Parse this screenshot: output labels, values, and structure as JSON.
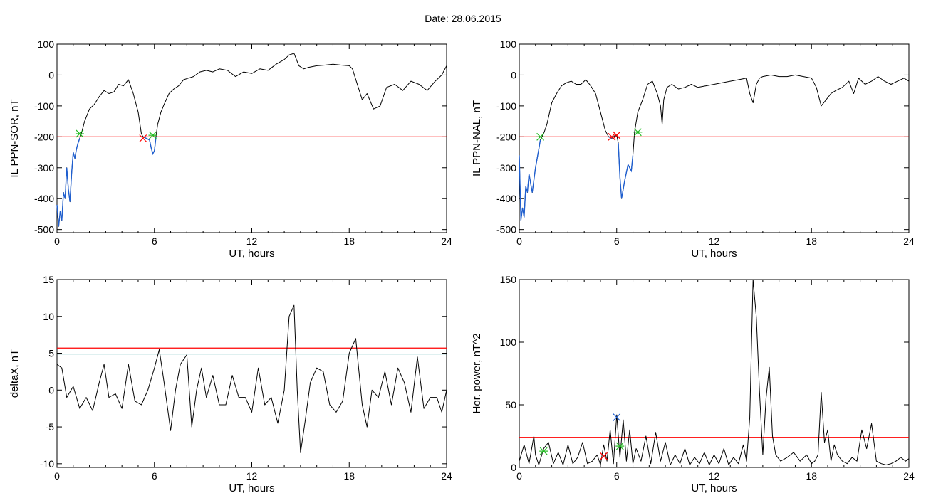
{
  "header": {
    "title": "Date:  28.06.2015"
  },
  "colors": {
    "line": "#000000",
    "threshold_red": "#ff0000",
    "threshold_teal": "#008b8b",
    "highlight_blue": "#1f5fd0",
    "marker_green": "#22bb22",
    "marker_red": "#cc0000",
    "marker_blue": "#1f5fd0"
  },
  "chart_data": [
    {
      "type": "line",
      "xlabel": "UT, hours",
      "ylabel": "IL PPN-SOR, nT",
      "xlim": [
        0,
        24
      ],
      "ylim": [
        -510,
        100
      ],
      "xticks": [
        0,
        6,
        12,
        18,
        24
      ],
      "yticks": [
        100,
        0,
        -100,
        -200,
        -300,
        -400,
        -500
      ],
      "threshold_lines": [
        {
          "y": -200,
          "color": "red"
        }
      ],
      "x": [
        0,
        0.1,
        0.2,
        0.3,
        0.4,
        0.5,
        0.6,
        0.7,
        0.8,
        0.9,
        1.0,
        1.1,
        1.2,
        1.3,
        1.4,
        1.5,
        1.7,
        2.0,
        2.3,
        2.6,
        2.9,
        3.2,
        3.5,
        3.8,
        4.1,
        4.4,
        4.7,
        5.0,
        5.2,
        5.3,
        5.5,
        5.7,
        5.8,
        5.9,
        6.0,
        6.1,
        6.2,
        6.4,
        6.6,
        6.9,
        7.2,
        7.5,
        7.8,
        8.1,
        8.4,
        8.8,
        9.2,
        9.6,
        10.0,
        10.5,
        11.0,
        11.5,
        12.0,
        12.5,
        13.0,
        13.5,
        14.0,
        14.3,
        14.6,
        14.9,
        15.2,
        15.5,
        16.0,
        16.5,
        17.0,
        17.5,
        18.0,
        18.2,
        18.5,
        18.8,
        19.1,
        19.5,
        19.9,
        20.3,
        20.8,
        21.3,
        21.8,
        22.3,
        22.8,
        23.3,
        23.7,
        24.0
      ],
      "y": [
        -420,
        -490,
        -440,
        -470,
        -380,
        -400,
        -300,
        -370,
        -410,
        -320,
        -250,
        -270,
        -240,
        -220,
        -205,
        -190,
        -150,
        -110,
        -95,
        -70,
        -50,
        -60,
        -55,
        -30,
        -35,
        -15,
        -60,
        -120,
        -190,
        -200,
        -205,
        -210,
        -235,
        -255,
        -245,
        -200,
        -160,
        -120,
        -95,
        -60,
        -45,
        -35,
        -15,
        -10,
        -5,
        10,
        15,
        10,
        20,
        15,
        -5,
        10,
        5,
        20,
        15,
        35,
        50,
        65,
        70,
        30,
        20,
        25,
        30,
        32,
        35,
        32,
        30,
        20,
        -30,
        -80,
        -60,
        -110,
        -100,
        -40,
        -30,
        -50,
        -20,
        -30,
        -50,
        -20,
        0,
        30
      ],
      "markers": [
        {
          "x": 1.4,
          "y": -190,
          "symbol": "asterisk",
          "color": "green"
        },
        {
          "x": 5.3,
          "y": -205,
          "symbol": "x",
          "color": "red"
        },
        {
          "x": 5.9,
          "y": -195,
          "symbol": "asterisk",
          "color": "green"
        }
      ]
    },
    {
      "type": "line",
      "xlabel": "UT, hours",
      "ylabel": "IL PPN-NAL, nT",
      "xlim": [
        0,
        24
      ],
      "ylim": [
        -510,
        100
      ],
      "xticks": [
        0,
        6,
        12,
        18,
        24
      ],
      "yticks": [
        100,
        0,
        -100,
        -200,
        -300,
        -400,
        -500
      ],
      "threshold_lines": [
        {
          "y": -200,
          "color": "red"
        }
      ],
      "x": [
        0,
        0.1,
        0.2,
        0.3,
        0.4,
        0.5,
        0.6,
        0.8,
        1.0,
        1.2,
        1.3,
        1.5,
        1.7,
        2.0,
        2.3,
        2.6,
        2.9,
        3.2,
        3.5,
        3.8,
        4.1,
        4.4,
        4.7,
        5.0,
        5.3,
        5.5,
        5.7,
        5.9,
        6.0,
        6.1,
        6.2,
        6.3,
        6.5,
        6.7,
        6.9,
        7.0,
        7.1,
        7.3,
        7.6,
        7.9,
        8.2,
        8.5,
        8.7,
        8.8,
        8.9,
        9.1,
        9.4,
        9.8,
        10.2,
        10.6,
        11.0,
        11.5,
        12.0,
        12.5,
        13.0,
        13.5,
        14.0,
        14.2,
        14.4,
        14.6,
        14.8,
        15.0,
        15.5,
        16.0,
        16.5,
        17.0,
        17.5,
        18.0,
        18.3,
        18.6,
        18.9,
        19.2,
        19.5,
        19.9,
        20.3,
        20.6,
        20.9,
        21.3,
        21.7,
        22.1,
        22.5,
        22.9,
        23.3,
        23.7,
        24.0
      ],
      "y": [
        -260,
        -470,
        -430,
        -460,
        -360,
        -380,
        -320,
        -380,
        -300,
        -240,
        -210,
        -190,
        -160,
        -90,
        -60,
        -35,
        -25,
        -20,
        -30,
        -30,
        -15,
        -35,
        -60,
        -120,
        -180,
        -200,
        -205,
        -195,
        -195,
        -220,
        -330,
        -400,
        -340,
        -290,
        -310,
        -260,
        -185,
        -120,
        -80,
        -30,
        -20,
        -60,
        -100,
        -160,
        -80,
        -40,
        -30,
        -45,
        -40,
        -30,
        -40,
        -35,
        -30,
        -25,
        -20,
        -15,
        -10,
        -60,
        -90,
        -30,
        -10,
        -5,
        0,
        -5,
        -5,
        0,
        -5,
        -10,
        -40,
        -100,
        -80,
        -60,
        -50,
        -40,
        -20,
        -60,
        -10,
        -30,
        -20,
        -5,
        -20,
        -30,
        -20,
        -10,
        -20
      ],
      "markers": [
        {
          "x": 1.3,
          "y": -200,
          "symbol": "asterisk",
          "color": "green"
        },
        {
          "x": 5.7,
          "y": -200,
          "symbol": "x",
          "color": "red"
        },
        {
          "x": 6.0,
          "y": -195,
          "symbol": "x",
          "color": "red"
        },
        {
          "x": 7.3,
          "y": -185,
          "symbol": "asterisk",
          "color": "green"
        }
      ]
    },
    {
      "type": "line",
      "xlabel": "UT, hours",
      "ylabel": "deltaX, nT",
      "xlim": [
        0,
        24
      ],
      "ylim": [
        -10.5,
        15
      ],
      "xticks": [
        0,
        6,
        12,
        18,
        24
      ],
      "yticks": [
        15,
        10,
        5,
        0,
        -5,
        -10
      ],
      "threshold_lines": [
        {
          "y": 5.7,
          "color": "red"
        },
        {
          "y": 4.9,
          "color": "teal"
        }
      ],
      "x": [
        0,
        0.3,
        0.6,
        1.0,
        1.4,
        1.8,
        2.2,
        2.6,
        2.9,
        3.2,
        3.6,
        4.0,
        4.4,
        4.8,
        5.2,
        5.6,
        6.0,
        6.3,
        6.6,
        7.0,
        7.3,
        7.6,
        8.0,
        8.3,
        8.6,
        8.9,
        9.2,
        9.6,
        10.0,
        10.4,
        10.8,
        11.2,
        11.6,
        12.0,
        12.4,
        12.8,
        13.2,
        13.6,
        14.0,
        14.3,
        14.6,
        14.8,
        15.0,
        15.3,
        15.6,
        16.0,
        16.4,
        16.8,
        17.2,
        17.6,
        18.0,
        18.4,
        18.8,
        19.1,
        19.4,
        19.8,
        20.2,
        20.6,
        21.0,
        21.4,
        21.8,
        22.2,
        22.6,
        23.0,
        23.4,
        23.7,
        24.0
      ],
      "y": [
        3.5,
        3,
        -1,
        0.5,
        -2.5,
        -1,
        -2.8,
        1,
        3.5,
        -1,
        -0.5,
        -2.5,
        3.5,
        -1.5,
        -2,
        0,
        3,
        5.5,
        1,
        -5.5,
        0,
        3.5,
        4.8,
        -5,
        0,
        3,
        -1,
        2,
        -2,
        -2,
        2,
        -1,
        -1,
        -3,
        3,
        -2,
        -1,
        -4.5,
        0,
        10,
        11.5,
        0,
        -8.5,
        -4,
        1,
        3,
        2.5,
        -2,
        -3,
        -1.5,
        5,
        7,
        -2,
        -5,
        0,
        -1,
        2.5,
        -2,
        3,
        1,
        -3,
        4.5,
        -2.5,
        -1,
        -1,
        -3,
        0
      ]
    },
    {
      "type": "line",
      "xlabel": "UT, hours",
      "ylabel": "Hor. power, nT^2",
      "xlim": [
        0,
        24
      ],
      "ylim": [
        0,
        150
      ],
      "xticks": [
        0,
        6,
        12,
        18,
        24
      ],
      "yticks": [
        150,
        100,
        50,
        0
      ],
      "threshold_lines": [
        {
          "y": 24,
          "color": "red"
        }
      ],
      "x": [
        0,
        0.3,
        0.6,
        0.9,
        1.0,
        1.2,
        1.5,
        1.8,
        2.1,
        2.4,
        2.7,
        3.0,
        3.3,
        3.6,
        3.9,
        4.2,
        4.5,
        4.8,
        5.0,
        5.2,
        5.4,
        5.6,
        5.8,
        6.0,
        6.2,
        6.4,
        6.6,
        6.8,
        7.0,
        7.2,
        7.5,
        7.8,
        8.1,
        8.4,
        8.7,
        9.0,
        9.3,
        9.6,
        9.9,
        10.2,
        10.5,
        10.8,
        11.1,
        11.4,
        11.7,
        12.0,
        12.3,
        12.6,
        12.9,
        13.2,
        13.5,
        13.8,
        14.0,
        14.2,
        14.4,
        14.6,
        14.8,
        15.0,
        15.2,
        15.4,
        15.6,
        15.8,
        16.1,
        16.5,
        16.9,
        17.3,
        17.7,
        18.0,
        18.2,
        18.4,
        18.6,
        18.8,
        19.0,
        19.2,
        19.4,
        19.6,
        19.9,
        20.2,
        20.5,
        20.8,
        21.1,
        21.4,
        21.7,
        22.0,
        22.3,
        22.6,
        22.9,
        23.2,
        23.5,
        23.8,
        24.0
      ],
      "y": [
        5,
        18,
        3,
        25,
        10,
        2,
        15,
        20,
        3,
        12,
        2,
        18,
        3,
        8,
        20,
        3,
        5,
        10,
        2,
        18,
        5,
        30,
        3,
        42,
        8,
        38,
        5,
        30,
        3,
        15,
        5,
        25,
        3,
        28,
        5,
        20,
        2,
        10,
        3,
        15,
        2,
        8,
        3,
        12,
        2,
        10,
        3,
        15,
        2,
        8,
        3,
        18,
        5,
        40,
        150,
        120,
        60,
        10,
        55,
        80,
        25,
        10,
        5,
        8,
        12,
        5,
        10,
        3,
        5,
        10,
        60,
        20,
        30,
        5,
        18,
        10,
        5,
        3,
        8,
        5,
        30,
        15,
        35,
        5,
        3,
        2,
        3,
        5,
        8,
        5,
        7
      ],
      "markers": [
        {
          "x": 1.5,
          "y": 13,
          "symbol": "asterisk",
          "color": "green"
        },
        {
          "x": 5.2,
          "y": 9,
          "symbol": "x",
          "color": "red"
        },
        {
          "x": 6.0,
          "y": 40,
          "symbol": "x",
          "color": "blue"
        },
        {
          "x": 6.2,
          "y": 17,
          "symbol": "asterisk",
          "color": "green"
        }
      ]
    }
  ]
}
